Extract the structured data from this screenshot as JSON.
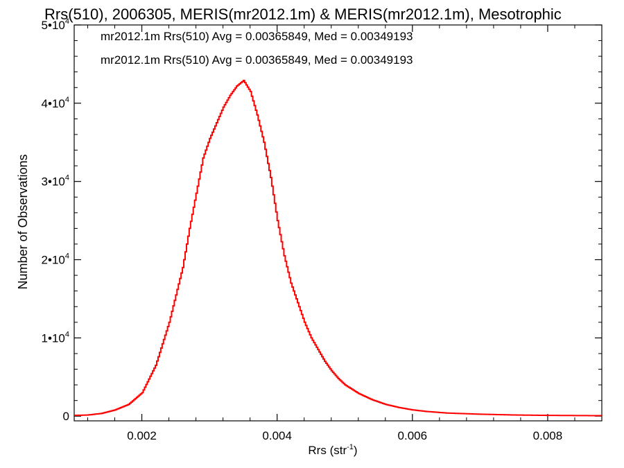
{
  "chart_data": {
    "type": "line",
    "title": "Rrs(510), 2006305, MERIS(mr2012.1m) & MERIS(mr2012.1m), Mesotrophic",
    "xlabel_base": "Rrs (str",
    "xlabel_sup": "-1",
    "xlabel_close": ")",
    "ylabel": "Number of Observations",
    "xlim": [
      0.001,
      0.0088
    ],
    "ylim": [
      -600,
      50000
    ],
    "x_ticks": [
      {
        "value": 0.002,
        "label": "0.002"
      },
      {
        "value": 0.004,
        "label": "0.004"
      },
      {
        "value": 0.006,
        "label": "0.006"
      },
      {
        "value": 0.008,
        "label": "0.008"
      }
    ],
    "y_ticks": [
      {
        "value": 0,
        "label": "0",
        "sup": ""
      },
      {
        "value": 10000,
        "label": "1•10",
        "sup": "4"
      },
      {
        "value": 20000,
        "label": "2•10",
        "sup": "4"
      },
      {
        "value": 30000,
        "label": "3•10",
        "sup": "4"
      },
      {
        "value": 40000,
        "label": "4•10",
        "sup": "4"
      },
      {
        "value": 50000,
        "label": "5•10",
        "sup": "4"
      }
    ],
    "annotations": [
      {
        "text": "mr2012.1m Rrs(510) Avg = 0.00365849, Med = 0.00349193",
        "color": "#000000"
      },
      {
        "text": "mr2012.1m Rrs(510) Avg = 0.00365849, Med = 0.00349193",
        "color": "#ff0000"
      }
    ],
    "series": [
      {
        "color": "#ff0000",
        "step": true,
        "points": [
          [
            0.001,
            100
          ],
          [
            0.0012,
            150
          ],
          [
            0.0014,
            350
          ],
          [
            0.0016,
            800
          ],
          [
            0.0018,
            1500
          ],
          [
            0.002,
            3000
          ],
          [
            0.0022,
            6500
          ],
          [
            0.0024,
            12000
          ],
          [
            0.0026,
            19000
          ],
          [
            0.0027,
            24000
          ],
          [
            0.0028,
            28500
          ],
          [
            0.0029,
            33000
          ],
          [
            0.003,
            35500
          ],
          [
            0.0031,
            37500
          ],
          [
            0.0032,
            39500
          ],
          [
            0.0033,
            41000
          ],
          [
            0.0034,
            42200
          ],
          [
            0.0035,
            42900
          ],
          [
            0.0036,
            41500
          ],
          [
            0.0037,
            38500
          ],
          [
            0.0038,
            35000
          ],
          [
            0.0039,
            30500
          ],
          [
            0.004,
            25000
          ],
          [
            0.0041,
            20500
          ],
          [
            0.0042,
            17000
          ],
          [
            0.0043,
            14500
          ],
          [
            0.0044,
            12000
          ],
          [
            0.0045,
            10000
          ],
          [
            0.0046,
            8500
          ],
          [
            0.0047,
            7000
          ],
          [
            0.0048,
            5800
          ],
          [
            0.0049,
            4800
          ],
          [
            0.005,
            4000
          ],
          [
            0.0052,
            2900
          ],
          [
            0.0054,
            2100
          ],
          [
            0.0056,
            1500
          ],
          [
            0.0058,
            1100
          ],
          [
            0.006,
            800
          ],
          [
            0.0062,
            600
          ],
          [
            0.0065,
            400
          ],
          [
            0.007,
            250
          ],
          [
            0.0075,
            150
          ],
          [
            0.008,
            100
          ],
          [
            0.0088,
            60
          ]
        ]
      }
    ]
  }
}
